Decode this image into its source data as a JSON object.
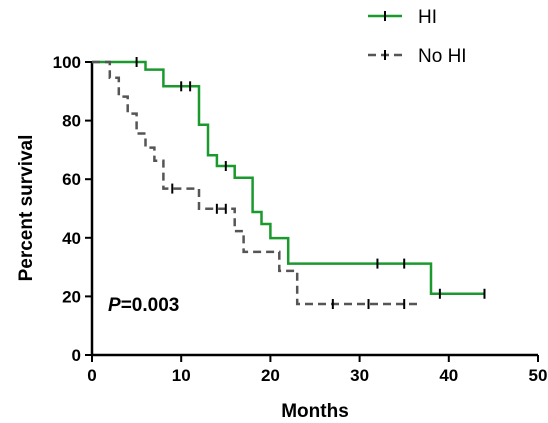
{
  "chart_data": {
    "type": "line",
    "subtype": "kaplan-meier-step",
    "xlabel": "Months",
    "ylabel": "Percent survival",
    "xlim": [
      0,
      50
    ],
    "ylim": [
      0,
      100
    ],
    "xticks": [
      "0",
      "10",
      "20",
      "30",
      "40",
      "50"
    ],
    "yticks": [
      "0",
      "20",
      "40",
      "60",
      "80",
      "100"
    ],
    "grid": false,
    "legend_position": "top-right",
    "annotation": {
      "italic": "P",
      "rest": "=0.003"
    },
    "series": [
      {
        "name": "HI",
        "color": "#1a9a2e",
        "dash": false,
        "steps": [
          [
            0,
            100
          ],
          [
            6,
            100
          ],
          [
            6,
            97.4
          ],
          [
            8,
            97.4
          ],
          [
            8,
            91.7
          ],
          [
            12,
            91.7
          ],
          [
            12,
            78.6
          ],
          [
            13,
            78.6
          ],
          [
            13,
            68.2
          ],
          [
            14,
            68.2
          ],
          [
            14,
            64.5
          ],
          [
            16,
            64.5
          ],
          [
            16,
            60.5
          ],
          [
            18,
            60.5
          ],
          [
            18,
            48.8
          ],
          [
            19,
            48.8
          ],
          [
            19,
            44.7
          ],
          [
            20,
            44.7
          ],
          [
            20,
            39.9
          ],
          [
            22,
            39.9
          ],
          [
            22,
            31.2
          ],
          [
            38,
            31.2
          ],
          [
            38,
            20.9
          ],
          [
            44,
            20.9
          ]
        ],
        "censored": [
          [
            5,
            100
          ],
          [
            10,
            91.7
          ],
          [
            11,
            91.7
          ],
          [
            15,
            64.5
          ],
          [
            32,
            31.2
          ],
          [
            35,
            31.2
          ],
          [
            39,
            20.9
          ],
          [
            44,
            20.9
          ]
        ]
      },
      {
        "name": "No HI",
        "color": "#555555",
        "dash": true,
        "steps": [
          [
            0,
            100
          ],
          [
            2,
            100
          ],
          [
            2,
            94.6
          ],
          [
            3,
            94.6
          ],
          [
            3,
            88.2
          ],
          [
            4,
            88.2
          ],
          [
            4,
            82.4
          ],
          [
            5,
            82.4
          ],
          [
            5,
            75.6
          ],
          [
            6,
            75.6
          ],
          [
            6,
            70.8
          ],
          [
            7,
            70.8
          ],
          [
            7,
            66.3
          ],
          [
            8,
            66.3
          ],
          [
            8,
            56.8
          ],
          [
            10,
            56.8
          ],
          [
            10,
            56.8
          ],
          [
            12,
            56.8
          ],
          [
            12,
            49.9
          ],
          [
            16,
            49.9
          ],
          [
            16,
            42.3
          ],
          [
            17,
            42.3
          ],
          [
            17,
            35.2
          ],
          [
            21,
            35.2
          ],
          [
            21,
            28.7
          ],
          [
            23,
            28.7
          ],
          [
            23,
            17.4
          ],
          [
            37,
            17.4
          ]
        ],
        "censored": [
          [
            9,
            56.8
          ],
          [
            14,
            49.9
          ],
          [
            15,
            49.9
          ],
          [
            27,
            17.4
          ],
          [
            31,
            17.4
          ],
          [
            35,
            17.4
          ]
        ]
      }
    ]
  }
}
